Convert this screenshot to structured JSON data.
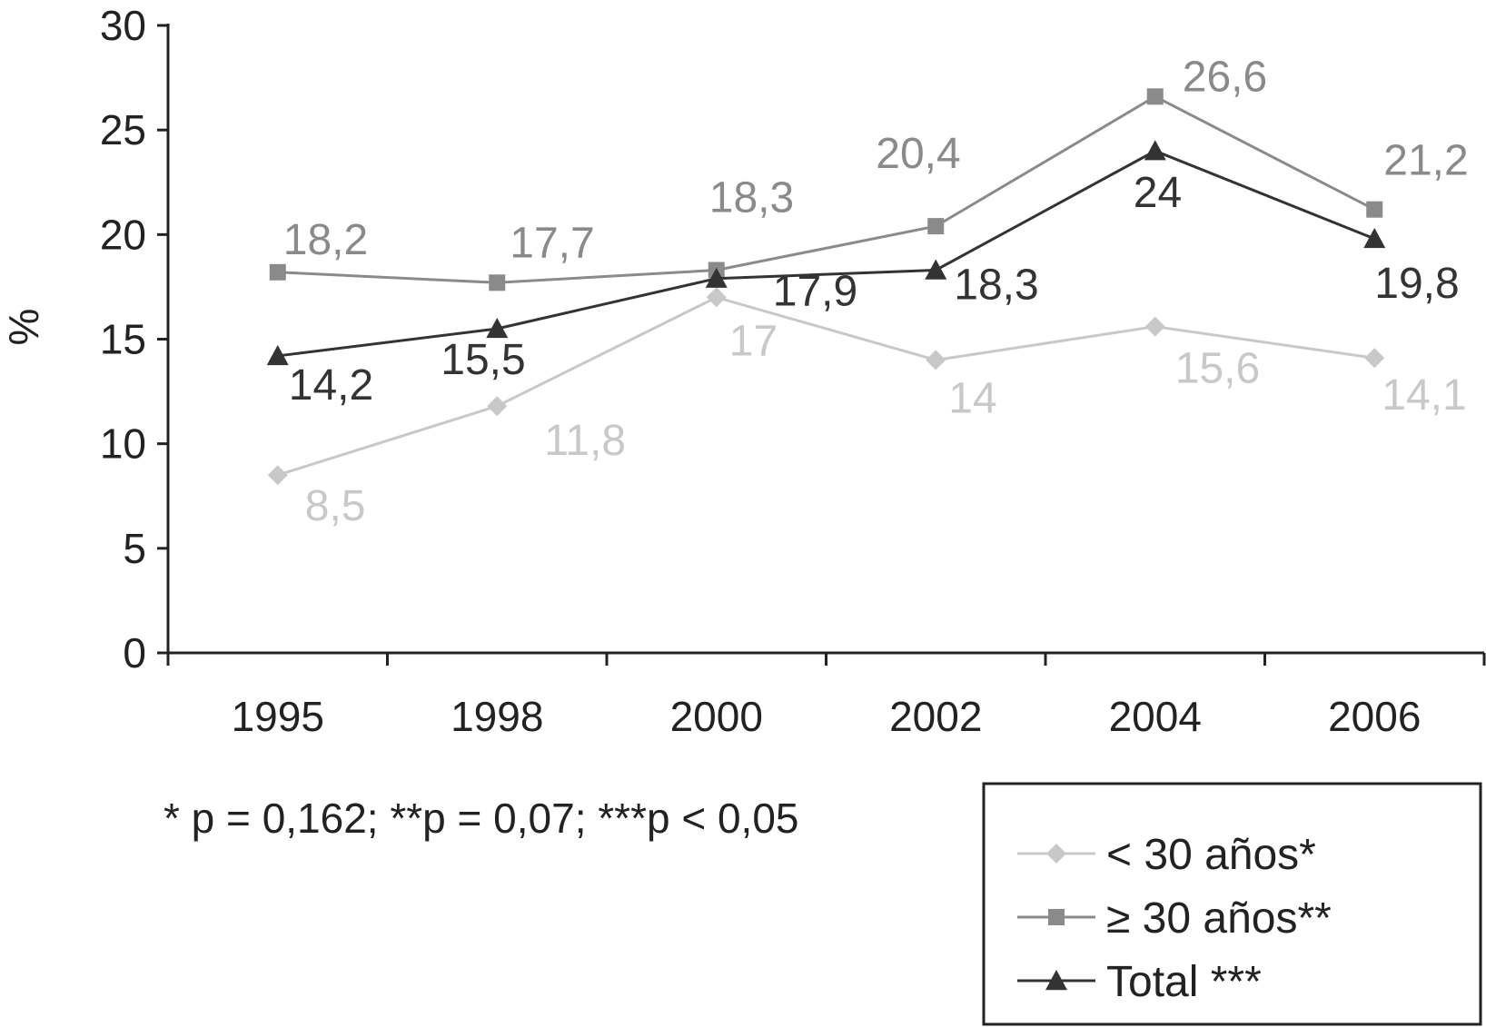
{
  "chart_data": {
    "type": "line",
    "categories": [
      "1995",
      "1998",
      "2000",
      "2002",
      "2004",
      "2006"
    ],
    "ylabel": "%",
    "ylim": [
      0,
      30
    ],
    "yticks": [
      0,
      5,
      10,
      15,
      20,
      25,
      30
    ],
    "grid": false,
    "legend_position": "bottom-right",
    "note": "* p = 0,162; **p = 0,07; ***p < 0,05",
    "series": [
      {
        "name": "< 30 años*",
        "values": [
          8.5,
          11.8,
          17,
          14,
          15.6,
          14.1
        ],
        "labels": [
          "8,5",
          "11,8",
          "17",
          "14",
          "15,6",
          "14,1"
        ],
        "color": "#c8c8c8",
        "marker": "diamond"
      },
      {
        "name": "≥ 30 años**",
        "values": [
          18.2,
          17.7,
          18.3,
          20.4,
          26.6,
          21.2
        ],
        "labels": [
          "18,2",
          "17,7",
          "18,3",
          "20,4",
          "26,6",
          "21,2"
        ],
        "color": "#8a8a8a",
        "marker": "square"
      },
      {
        "name": "Total ***",
        "values": [
          14.2,
          15.5,
          17.9,
          18.3,
          24,
          19.8
        ],
        "labels": [
          "14,2",
          "15,5",
          "17,9",
          "18,3",
          "24",
          "19,8"
        ],
        "color": "#333333",
        "marker": "triangle"
      }
    ]
  }
}
